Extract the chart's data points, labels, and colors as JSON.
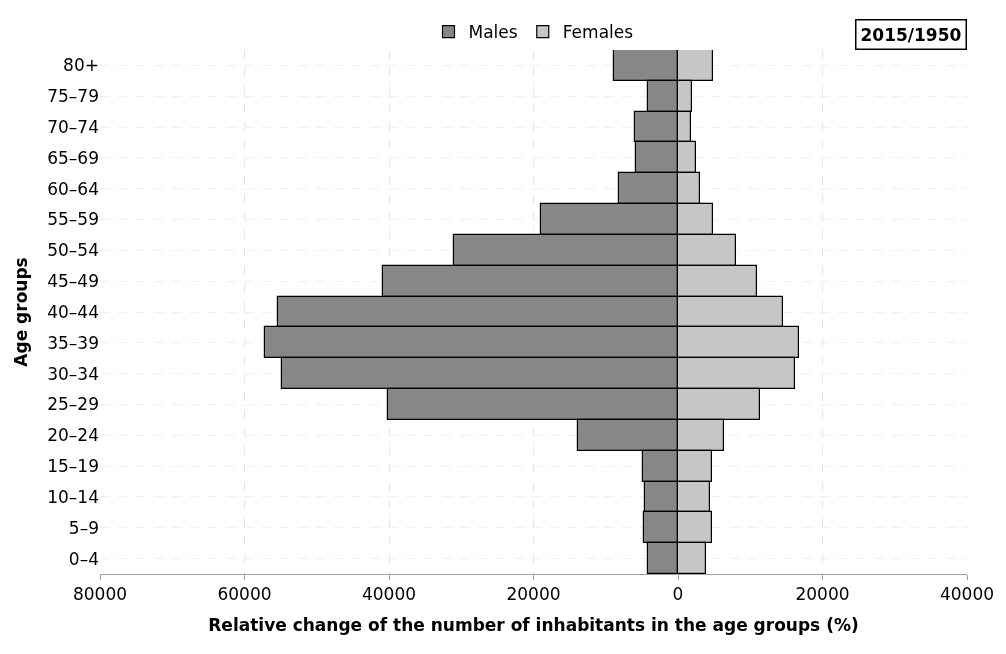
{
  "chart_data": {
    "type": "bar",
    "orientation": "horizontal",
    "xlabel": "Relative change of the number of inhabitants in the age groups (%)",
    "ylabel": "Age groups",
    "categories": [
      "80+",
      "75–79",
      "70–74",
      "65–69",
      "60–64",
      "55–59",
      "50–54",
      "45–49",
      "40–44",
      "35–39",
      "30–34",
      "25–29",
      "20–24",
      "15–19",
      "10–14",
      "5–9",
      "0–4"
    ],
    "series": [
      {
        "name": "Males",
        "color": "#878787",
        "values": [
          -8900,
          -4200,
          -6000,
          -5800,
          -8100,
          -18900,
          -31000,
          -40800,
          -55300,
          -57200,
          -54800,
          -40200,
          -13900,
          -4900,
          -4500,
          -4700,
          -4100
        ]
      },
      {
        "name": "Females",
        "color": "#c6c6c6",
        "values": [
          4900,
          2000,
          1800,
          2500,
          3000,
          4800,
          8000,
          11000,
          14500,
          16800,
          16200,
          11300,
          6300,
          4700,
          4400,
          4700,
          3900
        ]
      }
    ],
    "xlim": [
      -80000,
      40000
    ],
    "xticks": [
      {
        "value": -80000,
        "label": "80000"
      },
      {
        "value": -60000,
        "label": "60000"
      },
      {
        "value": -40000,
        "label": "40000"
      },
      {
        "value": -20000,
        "label": "20000"
      },
      0,
      20000,
      40000
    ],
    "stacked": true,
    "grid": true,
    "legend": "top",
    "annotations": [
      "2015/1950"
    ]
  }
}
